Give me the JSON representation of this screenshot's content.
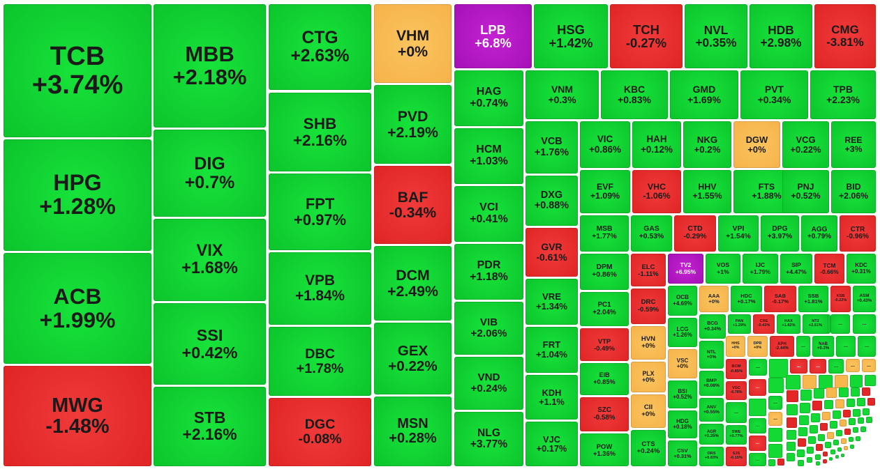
{
  "colors": {
    "up": "#14d934",
    "down": "#e52626",
    "flat": "#f8b84e",
    "ceiling": "#b018c0"
  },
  "chart_data": {
    "type": "treemap",
    "title": "",
    "unit": "% change",
    "stocks": [
      {
        "ticker": "TCB",
        "change": "+3.74%",
        "status": "up"
      },
      {
        "ticker": "HPG",
        "change": "+1.28%",
        "status": "up"
      },
      {
        "ticker": "ACB",
        "change": "+1.99%",
        "status": "up"
      },
      {
        "ticker": "MWG",
        "change": "-1.48%",
        "status": "down"
      },
      {
        "ticker": "MBB",
        "change": "+2.18%",
        "status": "up"
      },
      {
        "ticker": "DIG",
        "change": "+0.7%",
        "status": "up"
      },
      {
        "ticker": "VIX",
        "change": "+1.68%",
        "status": "up"
      },
      {
        "ticker": "SSI",
        "change": "+0.42%",
        "status": "up"
      },
      {
        "ticker": "STB",
        "change": "+2.16%",
        "status": "up"
      },
      {
        "ticker": "CTG",
        "change": "+2.63%",
        "status": "up"
      },
      {
        "ticker": "SHB",
        "change": "+2.16%",
        "status": "up"
      },
      {
        "ticker": "FPT",
        "change": "+0.97%",
        "status": "up"
      },
      {
        "ticker": "VPB",
        "change": "+1.84%",
        "status": "up"
      },
      {
        "ticker": "DBC",
        "change": "+1.78%",
        "status": "up"
      },
      {
        "ticker": "DGC",
        "change": "-0.08%",
        "status": "down"
      },
      {
        "ticker": "VHM",
        "change": "+0%",
        "status": "flat"
      },
      {
        "ticker": "PVD",
        "change": "+2.19%",
        "status": "up"
      },
      {
        "ticker": "BAF",
        "change": "-0.34%",
        "status": "down"
      },
      {
        "ticker": "DCM",
        "change": "+2.49%",
        "status": "up"
      },
      {
        "ticker": "GEX",
        "change": "+0.22%",
        "status": "up"
      },
      {
        "ticker": "MSN",
        "change": "+0.28%",
        "status": "up"
      },
      {
        "ticker": "LPB",
        "change": "+6.8%",
        "status": "ceiling"
      },
      {
        "ticker": "HAG",
        "change": "+0.74%",
        "status": "up"
      },
      {
        "ticker": "HCM",
        "change": "+1.03%",
        "status": "up"
      },
      {
        "ticker": "VCI",
        "change": "+0.41%",
        "status": "up"
      },
      {
        "ticker": "PDR",
        "change": "+1.18%",
        "status": "up"
      },
      {
        "ticker": "VIB",
        "change": "+2.06%",
        "status": "up"
      },
      {
        "ticker": "VND",
        "change": "+0.24%",
        "status": "up"
      },
      {
        "ticker": "NLG",
        "change": "+3.77%",
        "status": "up"
      },
      {
        "ticker": "HSG",
        "change": "+1.42%",
        "status": "up"
      },
      {
        "ticker": "TCH",
        "change": "-0.27%",
        "status": "down"
      },
      {
        "ticker": "NVL",
        "change": "+0.35%",
        "status": "up"
      },
      {
        "ticker": "HDB",
        "change": "+2.98%",
        "status": "up"
      },
      {
        "ticker": "CMG",
        "change": "-3.81%",
        "status": "down"
      },
      {
        "ticker": "VNM",
        "change": "+0.3%",
        "status": "up"
      },
      {
        "ticker": "KBC",
        "change": "+0.83%",
        "status": "up"
      },
      {
        "ticker": "GMD",
        "change": "+1.69%",
        "status": "up"
      },
      {
        "ticker": "PVT",
        "change": "+0.34%",
        "status": "up"
      },
      {
        "ticker": "TPB",
        "change": "+2.23%",
        "status": "up"
      },
      {
        "ticker": "VCB",
        "change": "+1.76%",
        "status": "up"
      },
      {
        "ticker": "DXG",
        "change": "+0.88%",
        "status": "up"
      },
      {
        "ticker": "GVR",
        "change": "-0.61%",
        "status": "down"
      },
      {
        "ticker": "VRE",
        "change": "+1.34%",
        "status": "up"
      },
      {
        "ticker": "FRT",
        "change": "+1.04%",
        "status": "up"
      },
      {
        "ticker": "KDH",
        "change": "+1.1%",
        "status": "up"
      },
      {
        "ticker": "VJC",
        "change": "+0.17%",
        "status": "up"
      },
      {
        "ticker": "VIC",
        "change": "+0.86%",
        "status": "up"
      },
      {
        "ticker": "HAH",
        "change": "+0.12%",
        "status": "up"
      },
      {
        "ticker": "NKG",
        "change": "+0.2%",
        "status": "up"
      },
      {
        "ticker": "DGW",
        "change": "+0%",
        "status": "flat"
      },
      {
        "ticker": "VCG",
        "change": "+0.22%",
        "status": "up"
      },
      {
        "ticker": "REE",
        "change": "+3%",
        "status": "up"
      },
      {
        "ticker": "EVF",
        "change": "+1.09%",
        "status": "up"
      },
      {
        "ticker": "VHC",
        "change": "-1.06%",
        "status": "down"
      },
      {
        "ticker": "HHV",
        "change": "+1.55%",
        "status": "up"
      },
      {
        "ticker": "FTS",
        "change": "+1.88%",
        "status": "up"
      },
      {
        "ticker": "PNJ",
        "change": "+0.52%",
        "status": "up"
      },
      {
        "ticker": "BID",
        "change": "+2.06%",
        "status": "up"
      },
      {
        "ticker": "MSB",
        "change": "+1.77%",
        "status": "up"
      },
      {
        "ticker": "GAS",
        "change": "+0.53%",
        "status": "up"
      },
      {
        "ticker": "CTD",
        "change": "-0.29%",
        "status": "down"
      },
      {
        "ticker": "VPI",
        "change": "+1.54%",
        "status": "up"
      },
      {
        "ticker": "DPG",
        "change": "+3.97%",
        "status": "up"
      },
      {
        "ticker": "AGG",
        "change": "+0.79%",
        "status": "up"
      },
      {
        "ticker": "CTR",
        "change": "-0.96%",
        "status": "down"
      },
      {
        "ticker": "DPM",
        "change": "+0.86%",
        "status": "up"
      },
      {
        "ticker": "ELC",
        "change": "-1.11%",
        "status": "down"
      },
      {
        "ticker": "TV2",
        "change": "+6.95%",
        "status": "ceiling"
      },
      {
        "ticker": "VOS",
        "change": "+1%",
        "status": "up"
      },
      {
        "ticker": "IJC",
        "change": "+1.79%",
        "status": "up"
      },
      {
        "ticker": "SIP",
        "change": "+4.47%",
        "status": "up"
      },
      {
        "ticker": "TCM",
        "change": "-0.66%",
        "status": "down"
      },
      {
        "ticker": "KDC",
        "change": "+0.31%",
        "status": "up"
      },
      {
        "ticker": "PC1",
        "change": "+2.04%",
        "status": "up"
      },
      {
        "ticker": "DRC",
        "change": "-0.59%",
        "status": "down"
      },
      {
        "ticker": "OCB",
        "change": "+4.69%",
        "status": "up"
      },
      {
        "ticker": "AAA",
        "change": "+0%",
        "status": "flat"
      },
      {
        "ticker": "HDC",
        "change": "+0.17%",
        "status": "up"
      },
      {
        "ticker": "SAB",
        "change": "-0.17%",
        "status": "down"
      },
      {
        "ticker": "SSB",
        "change": "+1.81%",
        "status": "up"
      },
      {
        "ticker": "KSB",
        "change": "-0.22%",
        "status": "down"
      },
      {
        "ticker": "ASM",
        "change": "+0.43%",
        "status": "up"
      },
      {
        "ticker": "VTP",
        "change": "-0.49%",
        "status": "down"
      },
      {
        "ticker": "HVN",
        "change": "+0%",
        "status": "flat"
      },
      {
        "ticker": "LCG",
        "change": "+1.26%",
        "status": "up"
      },
      {
        "ticker": "BCG",
        "change": "+0.34%",
        "status": "up"
      },
      {
        "ticker": "PAN",
        "change": "+1.29%",
        "status": "up"
      },
      {
        "ticker": "CRE",
        "change": "-0.43%",
        "status": "down"
      },
      {
        "ticker": "HAX",
        "change": "+1.82%",
        "status": "up"
      },
      {
        "ticker": "NT2",
        "change": "+2.51%",
        "status": "up"
      },
      {
        "ticker": "EIB",
        "change": "+0.85%",
        "status": "up"
      },
      {
        "ticker": "PLX",
        "change": "+0%",
        "status": "flat"
      },
      {
        "ticker": "VSC",
        "change": "+0%",
        "status": "flat"
      },
      {
        "ticker": "NTL",
        "change": "+0%",
        "status": "up"
      },
      {
        "ticker": "HHS",
        "change": "+0%",
        "status": "flat"
      },
      {
        "ticker": "DPR",
        "change": "+0%",
        "status": "flat"
      },
      {
        "ticker": "APH",
        "change": "-2.44%",
        "status": "down"
      },
      {
        "ticker": "NAB",
        "change": "+0.3%",
        "status": "up"
      },
      {
        "ticker": "SZC",
        "change": "-0.58%",
        "status": "down"
      },
      {
        "ticker": "CII",
        "change": "+0%",
        "status": "flat"
      },
      {
        "ticker": "BSI",
        "change": "+0.52%",
        "status": "up"
      },
      {
        "ticker": "BMP",
        "change": "+0.08%",
        "status": "up"
      },
      {
        "ticker": "BCM",
        "change": "-0.85%",
        "status": "down"
      },
      {
        "ticker": "POW",
        "change": "+1.36%",
        "status": "up"
      },
      {
        "ticker": "CTS",
        "change": "+0.24%",
        "status": "up"
      },
      {
        "ticker": "HDG",
        "change": "+0.18%",
        "status": "up"
      },
      {
        "ticker": "ANV",
        "change": "+0.55%",
        "status": "up"
      },
      {
        "ticker": "VGC",
        "change": "-0.78%",
        "status": "down"
      },
      {
        "ticker": "AGR",
        "change": "+0.35%",
        "status": "up"
      },
      {
        "ticker": "SWE",
        "change": "+0.77%",
        "status": "up"
      },
      {
        "ticker": "CSV",
        "change": "+0.31%",
        "status": "up"
      },
      {
        "ticker": "ORS",
        "change": "+0.83%",
        "status": "up"
      },
      {
        "ticker": "SJS",
        "change": "-0.15%",
        "status": "down"
      }
    ],
    "more_label": "..."
  }
}
